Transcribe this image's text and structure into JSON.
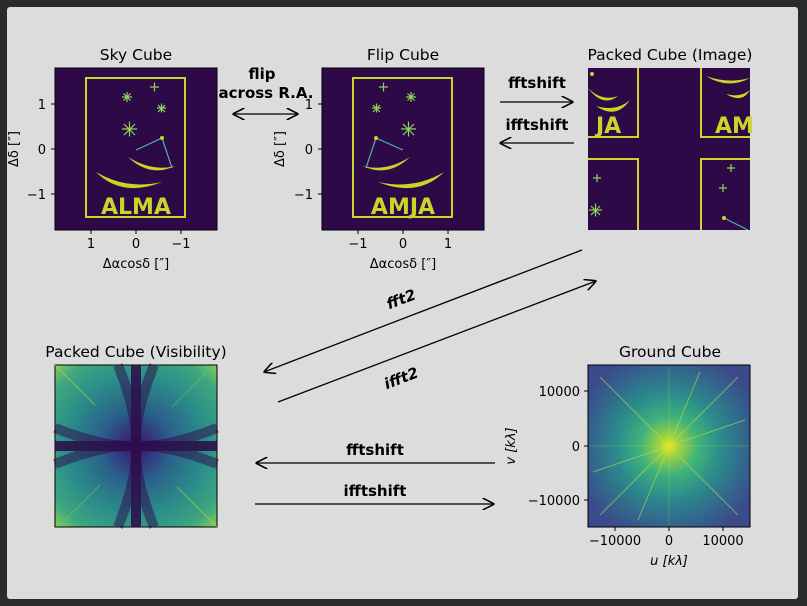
{
  "colors": {
    "background": "#dcdcdc",
    "frame": "#2b2b2b",
    "dark": "#2d0a47",
    "accent": "#c8d628",
    "star": "#8fd35a",
    "line": "#4fb3a0"
  },
  "panels": {
    "sky": {
      "title": "Sky Cube",
      "logo": "ALMA",
      "xticks": [
        "1",
        "0",
        "−1"
      ],
      "yticks": [
        "1",
        "0",
        "−1"
      ],
      "xlabel": "Δαcosδ [″]",
      "ylabel": "Δδ [″]"
    },
    "flip": {
      "title": "Flip Cube",
      "logo": "AMJA",
      "xticks": [
        "−1",
        "0",
        "1"
      ],
      "yticks": [
        "1",
        "0",
        "−1"
      ],
      "xlabel": "Δαcosδ [″]",
      "ylabel": "Δδ [″]"
    },
    "packed_image": {
      "title": "Packed Cube (Image)",
      "logo_left": "JA",
      "logo_right": "AM"
    },
    "packed_vis": {
      "title": "Packed Cube (Visibility)"
    },
    "ground": {
      "title": "Ground Cube",
      "xticks": [
        "−10000",
        "0",
        "10000"
      ],
      "yticks": [
        "10000",
        "0",
        "−10000"
      ],
      "xlabel": "u [kλ]",
      "ylabel": "v [kλ]"
    }
  },
  "arrows": {
    "flip_line1": "flip",
    "flip_line2": "across R.A.",
    "fftshift_top": "fftshift",
    "ifftshift_top": "ifftshift",
    "fft2": "fft2",
    "ifft2": "ifft2",
    "fftshift_bottom": "fftshift",
    "ifftshift_bottom": "ifftshift"
  }
}
